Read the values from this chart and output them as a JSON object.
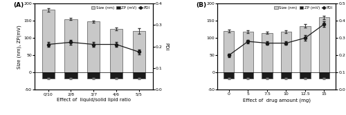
{
  "A": {
    "categories": [
      "0/10",
      "2/8",
      "3/7",
      "4/6",
      "5/5"
    ],
    "size": [
      182,
      155,
      148,
      127,
      120
    ],
    "size_err": [
      5,
      3,
      3,
      4,
      8
    ],
    "zp": [
      -18,
      -18,
      -18,
      -18,
      -18
    ],
    "zp_err": [
      2,
      2,
      2,
      2,
      2
    ],
    "pdi": [
      0.21,
      0.22,
      0.21,
      0.21,
      0.175
    ],
    "pdi_err": [
      0.01,
      0.01,
      0.01,
      0.01,
      0.01
    ],
    "xlabel": "Effect of  liquid/solid lipid ratio",
    "panel_label": "(A)",
    "ylim_left": [
      -50,
      200
    ],
    "ylim_right": [
      0,
      0.4
    ],
    "yticks_left": [
      -50,
      0,
      50,
      100,
      150,
      200
    ],
    "yticks_right": [
      0.0,
      0.1,
      0.2,
      0.3,
      0.4
    ]
  },
  "B": {
    "categories": [
      "0",
      "5",
      "7.5",
      "10",
      "12.5",
      "15"
    ],
    "size": [
      120,
      118,
      115,
      118,
      135,
      160
    ],
    "size_err": [
      4,
      4,
      3,
      4,
      5,
      5
    ],
    "zp": [
      -18,
      -18,
      -18,
      -18,
      -18,
      -18
    ],
    "zp_err": [
      2,
      2,
      2,
      2,
      2,
      2
    ],
    "pdi": [
      0.2,
      0.28,
      0.27,
      0.27,
      0.3,
      0.38
    ],
    "pdi_err": [
      0.01,
      0.01,
      0.01,
      0.01,
      0.015,
      0.015
    ],
    "xlabel": "Effect of  drug amount (mg)",
    "panel_label": "(B)",
    "ylim_left": [
      -50,
      200
    ],
    "ylim_right": [
      0,
      0.5
    ],
    "yticks_left": [
      -50,
      0,
      50,
      100,
      150,
      200
    ],
    "yticks_right": [
      0.0,
      0.1,
      0.2,
      0.3,
      0.4,
      0.5
    ]
  },
  "bar_color": "#c8c8c8",
  "zp_color": "#1a1a1a",
  "pdi_color": "#1a1a1a",
  "ylabel_left": "Size (nm), ZP(mV)",
  "ylabel_right": "PDI",
  "legend_labels": [
    "Size (nm)",
    "ZP (mV)",
    "PDI"
  ],
  "bar_edge_color": "#555555",
  "bar_width": 0.55
}
